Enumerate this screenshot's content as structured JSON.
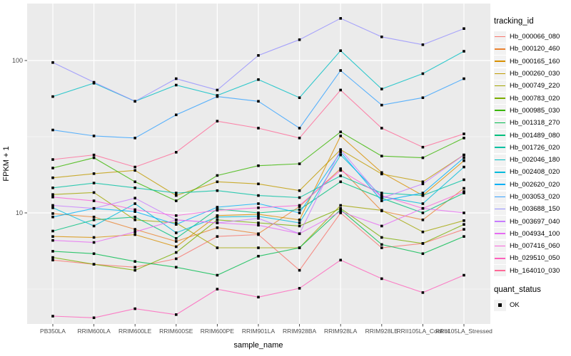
{
  "figure": {
    "y_axis_title": "FPKM + 1",
    "x_axis_title": "sample_name",
    "legend_title": "tracking_id",
    "quant_title": "quant_status",
    "quant_ok_label": "OK"
  },
  "colors": {
    "panel_bg": "#ebebeb",
    "grid": "#ffffff",
    "key_bg": "#f2f2f2",
    "tick_text": "#4d4d4d",
    "tick_mark": "#333333",
    "marker": "#000000"
  },
  "chart_data": {
    "type": "line",
    "title": "",
    "xlabel": "sample_name",
    "ylabel": "FPKM + 1",
    "y_scale": "log10",
    "ylim": [
      1.9,
      225
    ],
    "y_major_ticks": [
      10,
      100
    ],
    "y_minor_gridlines": [
      3.162,
      31.62
    ],
    "grid": true,
    "legend_position": "right",
    "marker": "black-square",
    "quant_status": "OK",
    "categories": [
      "PB350LA",
      "RRIM600LA",
      "RRIM600LE",
      "RRIM600SE",
      "RRIM600PE",
      "RRIM901LA",
      "RRIM928BA",
      "RRIM928LA",
      "RRIM928LE",
      "RRII105LA_Control",
      "RRII105LA_Stressed"
    ],
    "series": [
      {
        "name": "Hb_000066_080",
        "color": "#F8766D",
        "values": [
          4.9,
          4.6,
          4.4,
          5.0,
          7.0,
          7.2,
          4.2,
          10.0,
          5.9,
          6.3,
          7.8
        ]
      },
      {
        "name": "Hb_000120_460",
        "color": "#EA8331",
        "values": [
          9.9,
          9.4,
          7.8,
          6.5,
          8.0,
          7.3,
          11.0,
          19.5,
          10.3,
          9.0,
          14.5
        ]
      },
      {
        "name": "Hb_000165_160",
        "color": "#D89000",
        "values": [
          7.0,
          6.9,
          7.2,
          6.0,
          9.6,
          9.8,
          9.0,
          32.0,
          18.4,
          13.0,
          22.0
        ]
      },
      {
        "name": "Hb_000260_030",
        "color": "#C09B00",
        "values": [
          17.0,
          18.1,
          19.0,
          13.0,
          16.0,
          15.5,
          14.0,
          26.0,
          18.0,
          16.0,
          24.0
        ]
      },
      {
        "name": "Hb_000749_220",
        "color": "#A3A500",
        "values": [
          13.2,
          13.6,
          9.0,
          8.6,
          5.9,
          5.9,
          5.9,
          11.2,
          10.4,
          7.5,
          8.9
        ]
      },
      {
        "name": "Hb_000783_020",
        "color": "#7CAE00",
        "values": [
          5.1,
          4.6,
          4.2,
          5.5,
          9.0,
          8.6,
          8.2,
          10.7,
          6.9,
          6.3,
          8.4
        ]
      },
      {
        "name": "Hb_000985_030",
        "color": "#39B600",
        "values": [
          19.7,
          23.0,
          16.0,
          12.0,
          17.6,
          20.4,
          21.0,
          34.0,
          23.6,
          23.0,
          31.0
        ]
      },
      {
        "name": "Hb_001318_270",
        "color": "#00BB4E",
        "values": [
          5.6,
          5.4,
          4.8,
          4.4,
          3.9,
          5.2,
          5.9,
          10.5,
          6.2,
          5.4,
          7.0
        ]
      },
      {
        "name": "Hb_001489_080",
        "color": "#00BF7D",
        "values": [
          7.6,
          9.0,
          9.4,
          6.8,
          10.6,
          10.0,
          10.5,
          16.0,
          12.5,
          10.0,
          13.5
        ]
      },
      {
        "name": "Hb_001726_020",
        "color": "#00C1A3",
        "values": [
          14.6,
          15.7,
          14.6,
          13.5,
          14.0,
          13.0,
          12.6,
          17.5,
          13.5,
          13.0,
          16.5
        ]
      },
      {
        "name": "Hb_002046_180",
        "color": "#00BFC4",
        "values": [
          58,
          71,
          54,
          69,
          59,
          75,
          57,
          116,
          65,
          82,
          115
        ]
      },
      {
        "name": "Hb_002408_020",
        "color": "#00BBDB",
        "values": [
          10.8,
          8.2,
          11.5,
          7.4,
          9.4,
          9.5,
          8.6,
          24.0,
          12.8,
          11.5,
          20.0
        ]
      },
      {
        "name": "Hb_002620_020",
        "color": "#00B0F6",
        "values": [
          9.4,
          10.7,
          10.2,
          8.4,
          10.9,
          11.5,
          10.0,
          25.0,
          12.0,
          13.5,
          23.0
        ]
      },
      {
        "name": "Hb_003053_020",
        "color": "#35A2FF",
        "values": [
          35,
          32,
          31,
          44,
          58,
          54,
          36,
          86,
          51,
          57,
          76
        ]
      },
      {
        "name": "Hb_003688_150",
        "color": "#9590FF",
        "values": [
          97,
          72,
          54,
          76,
          64,
          108,
          137,
          189,
          143,
          127,
          162
        ]
      },
      {
        "name": "Hb_003697_040",
        "color": "#C77CFF",
        "values": [
          11.2,
          10.7,
          12.5,
          9.0,
          8.6,
          9.2,
          7.3,
          26.0,
          12.5,
          15.5,
          24.0
        ]
      },
      {
        "name": "Hb_004934_100",
        "color": "#E76BF3",
        "values": [
          6.6,
          6.4,
          7.5,
          9.0,
          8.6,
          8.3,
          7.3,
          10.2,
          8.2,
          10.7,
          10.0
        ]
      },
      {
        "name": "Hb_007416_060",
        "color": "#FA62DB",
        "values": [
          12.7,
          12.0,
          10.5,
          9.6,
          10.4,
          10.8,
          11.2,
          19.0,
          13.0,
          10.7,
          13.8
        ]
      },
      {
        "name": "Hb_029510_050",
        "color": "#FF62BC",
        "values": [
          2.1,
          2.05,
          2.35,
          2.15,
          3.16,
          2.8,
          3.2,
          4.9,
          3.7,
          3.0,
          3.9
        ]
      },
      {
        "name": "Hb_164010_030",
        "color": "#FF6A98",
        "values": [
          22.4,
          24.0,
          20.0,
          25.0,
          40.0,
          36.0,
          31.0,
          64.0,
          36.0,
          27.0,
          33.0
        ]
      }
    ]
  }
}
